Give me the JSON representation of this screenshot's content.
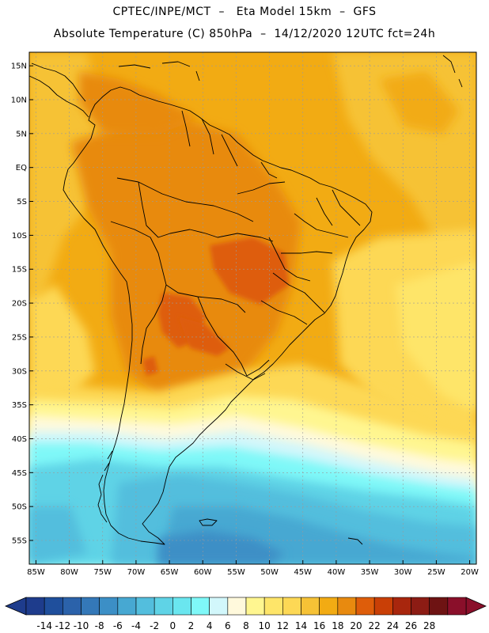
{
  "header": {
    "line1": "CPTEC/INPE/MCT  –   Eta Model 15km  –  GFS",
    "line2": "Absolute Temperature (C) 850hPa  –  14/12/2020 12UTC fct=24h"
  },
  "map": {
    "lon_range": [
      -86,
      -19
    ],
    "lat_range": [
      -58.5,
      17
    ],
    "grid": "dashed",
    "lat_ticks": [
      {
        "value": 15,
        "label": "15N"
      },
      {
        "value": 10,
        "label": "10N"
      },
      {
        "value": 5,
        "label": "5N"
      },
      {
        "value": 0,
        "label": "EQ"
      },
      {
        "value": -5,
        "label": "5S"
      },
      {
        "value": -10,
        "label": "10S"
      },
      {
        "value": -15,
        "label": "15S"
      },
      {
        "value": -20,
        "label": "20S"
      },
      {
        "value": -25,
        "label": "25S"
      },
      {
        "value": -30,
        "label": "30S"
      },
      {
        "value": -35,
        "label": "35S"
      },
      {
        "value": -40,
        "label": "40S"
      },
      {
        "value": -45,
        "label": "45S"
      },
      {
        "value": -50,
        "label": "50S"
      },
      {
        "value": -55,
        "label": "55S"
      }
    ],
    "lon_ticks": [
      {
        "value": -85,
        "label": "85W"
      },
      {
        "value": -80,
        "label": "80W"
      },
      {
        "value": -75,
        "label": "75W"
      },
      {
        "value": -70,
        "label": "70W"
      },
      {
        "value": -65,
        "label": "65W"
      },
      {
        "value": -60,
        "label": "60W"
      },
      {
        "value": -55,
        "label": "55W"
      },
      {
        "value": -50,
        "label": "50W"
      },
      {
        "value": -45,
        "label": "45W"
      },
      {
        "value": -40,
        "label": "40W"
      },
      {
        "value": -35,
        "label": "35W"
      },
      {
        "value": -30,
        "label": "30W"
      },
      {
        "value": -25,
        "label": "25W"
      },
      {
        "value": -20,
        "label": "20W"
      }
    ]
  },
  "colorbar": {
    "labels": [
      "-14",
      "-12",
      "-10",
      "-8",
      "-6",
      "-4",
      "-2",
      "0",
      "2",
      "4",
      "6",
      "8",
      "10",
      "12",
      "14",
      "16",
      "18",
      "20",
      "22",
      "24",
      "26",
      "28"
    ],
    "colors": [
      "#1e3c8c",
      "#1f4f9c",
      "#2b62aa",
      "#3478b8",
      "#3c8fc6",
      "#47a8d2",
      "#53bedd",
      "#5fd3e6",
      "#6ae6ef",
      "#7ff8f8",
      "#d2f7fb",
      "#fff9dc",
      "#fff690",
      "#fee569",
      "#fdd855",
      "#f6c236",
      "#f2ab13",
      "#e88a0f",
      "#de5d0a",
      "#c93f06",
      "#a8260d",
      "#8c1c14",
      "#6e1313",
      "#8a0f2a"
    ]
  }
}
